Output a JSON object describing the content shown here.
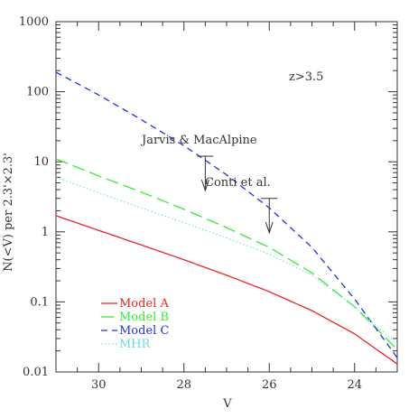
{
  "chart_data": {
    "type": "line",
    "xlabel": "V",
    "ylabel": "N(<V) per 2.3'×2.3'",
    "xlim": [
      31,
      23
    ],
    "ylim": [
      0.01,
      1000
    ],
    "y_scale": "log",
    "x_ticks": [
      "30",
      "28",
      "26",
      "24"
    ],
    "x_tick_values": [
      30,
      28,
      26,
      24
    ],
    "y_ticks": [
      "0.01",
      "0.1",
      "1",
      "10",
      "100",
      "1000"
    ],
    "y_tick_values": [
      0.01,
      0.1,
      1,
      10,
      100,
      1000
    ],
    "grid": false,
    "legend_position": "bottom-left",
    "annotations": {
      "redshift": "z>3.5",
      "jarvis": "Jarvis & MacAlpine",
      "conti": "Conti et al."
    },
    "upper_limits": [
      {
        "name": "Jarvis & MacAlpine",
        "x": 27.5,
        "y": 12
      },
      {
        "name": "Conti et al.",
        "x": 26.0,
        "y": 3.0
      }
    ],
    "series": [
      {
        "name": "Model A",
        "color": "#ee2222",
        "dash": "",
        "x": [
          31.0,
          30.0,
          29.0,
          28.0,
          27.0,
          26.0,
          25.0,
          24.0,
          23.0
        ],
        "y": [
          1.7,
          1.05,
          0.65,
          0.4,
          0.24,
          0.14,
          0.075,
          0.035,
          0.013
        ]
      },
      {
        "name": "Model B",
        "color": "#33ee33",
        "dash": "14,6",
        "x": [
          31.0,
          30.0,
          29.0,
          28.0,
          27.0,
          26.0,
          25.0,
          24.0,
          23.0
        ],
        "y": [
          11.0,
          6.3,
          3.7,
          2.1,
          1.15,
          0.6,
          0.26,
          0.085,
          0.021
        ]
      },
      {
        "name": "Model C",
        "color": "#2233dd",
        "dash": "7,5",
        "x": [
          31.0,
          30.0,
          29.0,
          28.0,
          27.0,
          26.0,
          25.0,
          24.0,
          23.0
        ],
        "y": [
          190,
          90,
          40,
          17,
          6.5,
          2.2,
          0.6,
          0.11,
          0.016
        ]
      },
      {
        "name": "MHR",
        "color": "#66dddd",
        "dash": "1.5,2.5",
        "x": [
          31.0,
          30.0,
          29.0,
          28.0,
          27.0,
          26.0,
          25.0,
          24.0,
          23.0
        ],
        "y": [
          6.0,
          3.6,
          2.2,
          1.35,
          0.82,
          0.48,
          0.24,
          0.085,
          0.025
        ]
      }
    ]
  }
}
